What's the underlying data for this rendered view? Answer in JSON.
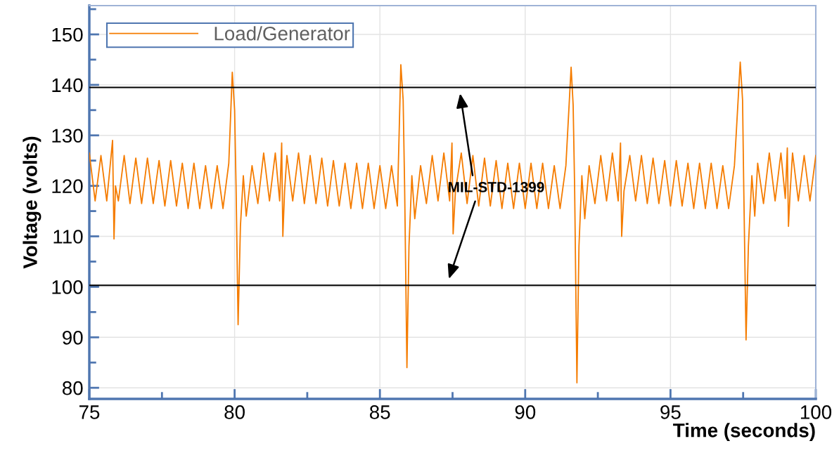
{
  "chart_data": {
    "type": "line",
    "xlabel": "Time (seconds)",
    "ylabel": "Voltage (volts)",
    "xlim": [
      75,
      100
    ],
    "ylim": [
      77.8,
      155.7
    ],
    "xticks": [
      75,
      {
        "value": 77.5,
        "label": null
      },
      80,
      {
        "value": 82.5,
        "label": null
      },
      85,
      {
        "value": 87.5,
        "label": null
      },
      90,
      {
        "value": 92.5,
        "label": null
      },
      95,
      {
        "value": 97.5,
        "label": null
      },
      100
    ],
    "yticks": [
      80,
      {
        "value": 85,
        "label": null
      },
      90,
      {
        "value": 95,
        "label": null
      },
      100,
      {
        "value": 105,
        "label": null
      },
      110,
      {
        "value": 115,
        "label": null
      },
      120,
      {
        "value": 125,
        "label": null
      },
      130,
      {
        "value": 135,
        "label": null
      },
      140,
      {
        "value": 145,
        "label": null
      },
      150,
      {
        "value": 155,
        "label": null
      }
    ],
    "grid": true,
    "legend": "top left",
    "marker": "none",
    "line_style": "solid",
    "ref_lines": [
      {
        "axis": "y",
        "value": 139.5,
        "color": "#000000"
      },
      {
        "axis": "y",
        "value": 100.3,
        "color": "#000000"
      }
    ],
    "annotations": [
      {
        "text": "MIL-STD-1399",
        "x": 89.0,
        "y": 119.5
      }
    ],
    "series": [
      {
        "name": "Load/Generator",
        "color": "#f57c00",
        "x": [
          75.0,
          75.2,
          75.4,
          75.6,
          75.75,
          75.8,
          75.85,
          75.9,
          76.0,
          76.2,
          76.4,
          76.6,
          76.8,
          77.0,
          77.2,
          77.4,
          77.6,
          77.8,
          78.0,
          78.2,
          78.4,
          78.6,
          78.8,
          79.0,
          79.2,
          79.4,
          79.6,
          79.8,
          79.92,
          80.0,
          80.05,
          80.12,
          80.2,
          80.3,
          80.4,
          80.6,
          80.8,
          81.0,
          81.2,
          81.4,
          81.55,
          81.62,
          81.66,
          81.72,
          81.8,
          82.0,
          82.2,
          82.4,
          82.6,
          82.8,
          83.0,
          83.2,
          83.4,
          83.6,
          83.8,
          84.0,
          84.2,
          84.4,
          84.6,
          84.8,
          85.0,
          85.2,
          85.4,
          85.6,
          85.72,
          85.8,
          85.85,
          85.93,
          86.0,
          86.1,
          86.2,
          86.4,
          86.6,
          86.8,
          87.0,
          87.2,
          87.4,
          87.48,
          87.52,
          87.6,
          87.8,
          88.0,
          88.2,
          88.4,
          88.6,
          88.8,
          89.0,
          89.2,
          89.4,
          89.6,
          89.8,
          90.0,
          90.2,
          90.4,
          90.6,
          90.8,
          91.0,
          91.2,
          91.4,
          91.58,
          91.65,
          91.7,
          91.78,
          91.85,
          91.95,
          92.05,
          92.2,
          92.4,
          92.6,
          92.8,
          93.0,
          93.2,
          93.28,
          93.32,
          93.4,
          93.6,
          93.8,
          94.0,
          94.2,
          94.4,
          94.6,
          94.8,
          95.0,
          95.2,
          95.4,
          95.6,
          95.8,
          96.0,
          96.2,
          96.4,
          96.6,
          96.8,
          97.0,
          97.2,
          97.4,
          97.48,
          97.52,
          97.6,
          97.68,
          97.8,
          97.9,
          98.0,
          98.2,
          98.4,
          98.6,
          98.8,
          98.95,
          99.02,
          99.06,
          99.12,
          99.2,
          99.4,
          99.6,
          99.8,
          100.0
        ],
        "values": [
          126.5,
          117,
          126,
          117,
          126,
          129,
          109.5,
          120,
          117,
          126,
          116.5,
          125.5,
          116.5,
          125.5,
          116.5,
          125,
          116,
          125,
          116,
          124.5,
          115.5,
          124.5,
          115.5,
          124,
          115.5,
          124,
          115.5,
          124.5,
          142.5,
          135,
          120,
          92.5,
          112,
          122,
          114,
          124,
          116.5,
          126.5,
          117,
          126.5,
          117,
          128.5,
          110,
          119,
          126,
          117,
          126.5,
          116.5,
          126,
          116.5,
          125.5,
          116,
          125,
          116,
          124.5,
          115.5,
          124.5,
          115.5,
          124.5,
          115.5,
          124,
          115.5,
          124,
          116,
          144,
          137,
          120,
          84,
          108,
          122,
          113.5,
          124,
          116.5,
          126,
          117,
          126.5,
          117,
          128.5,
          110.5,
          119,
          126.5,
          116.5,
          126,
          116,
          125.5,
          116,
          125,
          115.5,
          124.5,
          115.5,
          124.5,
          115.5,
          124.5,
          115.5,
          124.5,
          115.5,
          124,
          115.5,
          124,
          143.5,
          136,
          120,
          81,
          108,
          122,
          113.5,
          124,
          116.5,
          126,
          117,
          126.5,
          117,
          128.5,
          110,
          119,
          126,
          117,
          126,
          116.5,
          125.5,
          116.5,
          125,
          116,
          125,
          116,
          124.5,
          115.5,
          124.5,
          115.5,
          124.5,
          115.5,
          124,
          115.5,
          124,
          144.5,
          137,
          120,
          89.5,
          108,
          122,
          114,
          124.5,
          116.5,
          126.5,
          117,
          126.5,
          117.5,
          127.5,
          112,
          119,
          126.5,
          117,
          126,
          117,
          126
        ]
      }
    ]
  }
}
